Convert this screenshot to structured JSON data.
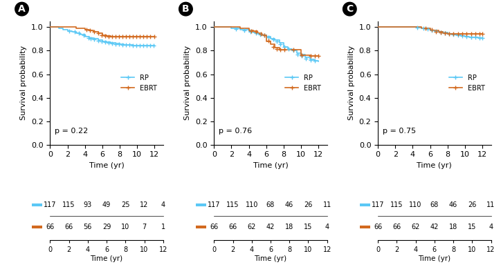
{
  "chart_data": [
    {
      "type": "step",
      "panel_label": "A",
      "annotation": "p = 0.22",
      "xlabel": "Time (yr)",
      "ylabel": "Survival probability",
      "xlim": [
        0,
        13
      ],
      "ylim": [
        0.0,
        1.05
      ],
      "xticks": [
        0,
        2,
        4,
        6,
        8,
        10,
        12
      ],
      "yticks": [
        0.0,
        0.2,
        0.4,
        0.6,
        0.8,
        1.0
      ],
      "grid": false,
      "legend": "center right",
      "series": [
        {
          "name": "RP",
          "color": "#5BC8F5",
          "marker": "plus",
          "x": [
            0,
            0.5,
            1,
            1.5,
            2,
            2.5,
            3,
            3.5,
            4,
            4.5,
            5,
            5.5,
            6,
            6.5,
            7,
            7.5,
            8,
            8.5,
            9,
            9.5,
            10,
            10.5,
            11,
            11.5,
            12
          ],
          "values": [
            1.0,
            1.0,
            0.99,
            0.98,
            0.97,
            0.96,
            0.95,
            0.94,
            0.92,
            0.91,
            0.9,
            0.89,
            0.88,
            0.875,
            0.87,
            0.86,
            0.855,
            0.85,
            0.848,
            0.845,
            0.845,
            0.845,
            0.845,
            0.845,
            0.845
          ],
          "censor_x": [
            2.2,
            2.8,
            3.3,
            3.9,
            4.4,
            4.7,
            5.1,
            5.5,
            5.9,
            6.3,
            6.7,
            7.1,
            7.5,
            7.9,
            8.3,
            8.7,
            9.1,
            9.5,
            9.9,
            10.3,
            10.7,
            11.1,
            11.5,
            11.9
          ],
          "censor_values": [
            0.97,
            0.96,
            0.95,
            0.93,
            0.91,
            0.9,
            0.895,
            0.885,
            0.877,
            0.872,
            0.868,
            0.86,
            0.857,
            0.854,
            0.851,
            0.848,
            0.847,
            0.846,
            0.845,
            0.845,
            0.845,
            0.845,
            0.845,
            0.845
          ],
          "at_risk": [
            117,
            115,
            93,
            49,
            25,
            12,
            4
          ]
        },
        {
          "name": "EBRT",
          "color": "#D2691E",
          "marker": "plus",
          "x": [
            0,
            1,
            2,
            3,
            4,
            4.5,
            5,
            5.5,
            6,
            6.5,
            7,
            8,
            9,
            10,
            11,
            12
          ],
          "values": [
            1.0,
            1.0,
            1.0,
            0.99,
            0.98,
            0.975,
            0.96,
            0.95,
            0.935,
            0.925,
            0.92,
            0.92,
            0.92,
            0.92,
            0.92,
            0.92
          ],
          "censor_x": [
            4.2,
            4.6,
            5.1,
            5.5,
            5.9,
            6.3,
            6.7,
            7.1,
            7.5,
            7.9,
            8.3,
            8.7,
            9.1,
            9.5,
            9.9,
            10.3,
            10.7,
            11.1,
            11.5,
            12.0
          ],
          "censor_values": [
            0.98,
            0.975,
            0.96,
            0.95,
            0.935,
            0.925,
            0.922,
            0.921,
            0.92,
            0.92,
            0.92,
            0.92,
            0.92,
            0.92,
            0.92,
            0.92,
            0.92,
            0.92,
            0.92,
            0.92
          ],
          "at_risk": [
            66,
            66,
            56,
            29,
            10,
            7,
            1
          ]
        }
      ],
      "at_risk_x": [
        0,
        2,
        4,
        6,
        8,
        10,
        12
      ],
      "at_risk_xlim": [
        0,
        12
      ],
      "at_risk_xticks": [
        0,
        2,
        4,
        6,
        8,
        10,
        12
      ],
      "at_risk_xlabel": "Time (yr)"
    },
    {
      "type": "step",
      "panel_label": "B",
      "annotation": "p = 0.76",
      "xlabel": "Time (yr)",
      "ylabel": "Survival probability",
      "xlim": [
        0,
        13
      ],
      "ylim": [
        0.0,
        1.05
      ],
      "xticks": [
        0,
        2,
        4,
        6,
        8,
        10,
        12
      ],
      "yticks": [
        0.0,
        0.2,
        0.4,
        0.6,
        0.8,
        1.0
      ],
      "grid": false,
      "legend": "center right",
      "series": [
        {
          "name": "RP",
          "color": "#5BC8F5",
          "marker": "plus",
          "x": [
            0,
            1,
            2,
            3,
            4,
            4.5,
            5,
            5.5,
            6,
            6.5,
            7,
            7.5,
            8,
            8.5,
            9,
            9.5,
            10,
            10.5,
            11,
            11.5,
            12
          ],
          "values": [
            1.0,
            1.0,
            0.99,
            0.98,
            0.96,
            0.955,
            0.945,
            0.935,
            0.92,
            0.905,
            0.89,
            0.87,
            0.83,
            0.815,
            0.8,
            0.78,
            0.765,
            0.745,
            0.725,
            0.715,
            0.71
          ],
          "censor_x": [
            2.5,
            3.5,
            4.2,
            4.8,
            5.3,
            5.8,
            6.3,
            6.8,
            7.2,
            7.6,
            8.1,
            8.6,
            9.1,
            9.6,
            10.1,
            10.6,
            11.1,
            11.6
          ],
          "censor_values": [
            0.985,
            0.975,
            0.96,
            0.95,
            0.94,
            0.93,
            0.915,
            0.898,
            0.88,
            0.855,
            0.83,
            0.815,
            0.8,
            0.77,
            0.755,
            0.735,
            0.72,
            0.714
          ],
          "at_risk": [
            117,
            115,
            110,
            68,
            46,
            26,
            11
          ]
        },
        {
          "name": "EBRT",
          "color": "#D2691E",
          "marker": "plus",
          "x": [
            0,
            1,
            2,
            3,
            4,
            4.5,
            5,
            5.5,
            6,
            6.5,
            7,
            7.5,
            8,
            9,
            10,
            11,
            12
          ],
          "values": [
            1.0,
            1.0,
            1.0,
            0.99,
            0.975,
            0.965,
            0.95,
            0.93,
            0.88,
            0.855,
            0.825,
            0.81,
            0.81,
            0.81,
            0.76,
            0.755,
            0.755
          ],
          "censor_x": [
            4.3,
            4.8,
            5.4,
            5.8,
            6.3,
            6.8,
            7.2,
            7.6,
            8.1,
            9.1,
            10.1,
            11.1,
            11.6,
            12.0
          ],
          "censor_values": [
            0.97,
            0.96,
            0.945,
            0.935,
            0.885,
            0.835,
            0.813,
            0.811,
            0.811,
            0.81,
            0.762,
            0.758,
            0.755,
            0.755
          ],
          "at_risk": [
            66,
            66,
            62,
            42,
            18,
            15,
            4
          ]
        }
      ],
      "at_risk_x": [
        0,
        2,
        4,
        6,
        8,
        10,
        12
      ],
      "at_risk_xlim": [
        0,
        12
      ],
      "at_risk_xticks": [
        0,
        2,
        4,
        6,
        8,
        10,
        12
      ],
      "at_risk_xlabel": "Time (yr)"
    },
    {
      "type": "step",
      "panel_label": "C",
      "annotation": "p = 0.75",
      "xlabel": "Time (yr)",
      "ylabel": "Survival probability",
      "xlim": [
        0,
        13
      ],
      "ylim": [
        0.0,
        1.05
      ],
      "xticks": [
        0,
        2,
        4,
        6,
        8,
        10,
        12
      ],
      "yticks": [
        0.0,
        0.2,
        0.4,
        0.6,
        0.8,
        1.0
      ],
      "grid": false,
      "legend": "center right",
      "series": [
        {
          "name": "RP",
          "color": "#5BC8F5",
          "marker": "plus",
          "x": [
            0,
            1,
            2,
            3,
            4,
            4.5,
            5,
            5.5,
            6,
            6.5,
            7,
            7.5,
            8,
            8.5,
            9,
            9.5,
            10,
            10.5,
            11,
            11.5,
            12
          ],
          "values": [
            1.0,
            1.0,
            1.0,
            1.0,
            1.0,
            0.995,
            0.99,
            0.985,
            0.975,
            0.968,
            0.96,
            0.955,
            0.945,
            0.938,
            0.932,
            0.926,
            0.92,
            0.916,
            0.913,
            0.91,
            0.91
          ],
          "censor_x": [
            4.5,
            5.2,
            5.7,
            6.2,
            6.7,
            7.2,
            7.7,
            8.2,
            8.7,
            9.2,
            9.7,
            10.2,
            10.7,
            11.2,
            11.7,
            12.0
          ],
          "censor_values": [
            0.995,
            0.99,
            0.985,
            0.975,
            0.965,
            0.958,
            0.952,
            0.944,
            0.938,
            0.931,
            0.925,
            0.92,
            0.916,
            0.912,
            0.91,
            0.91
          ],
          "at_risk": [
            117,
            115,
            110,
            68,
            46,
            26,
            11
          ]
        },
        {
          "name": "EBRT",
          "color": "#D2691E",
          "marker": "plus",
          "x": [
            0,
            1,
            2,
            3,
            4,
            5,
            6,
            7,
            7.5,
            8,
            9,
            10,
            11,
            12
          ],
          "values": [
            1.0,
            1.0,
            1.0,
            1.0,
            1.0,
            0.99,
            0.975,
            0.96,
            0.95,
            0.945,
            0.942,
            0.942,
            0.942,
            0.942
          ],
          "censor_x": [
            5.5,
            6.2,
            6.7,
            7.2,
            7.7,
            8.2,
            8.7,
            9.2,
            9.7,
            10.2,
            10.7,
            11.2,
            11.7,
            12.0
          ],
          "censor_values": [
            0.99,
            0.977,
            0.964,
            0.953,
            0.947,
            0.944,
            0.943,
            0.942,
            0.942,
            0.942,
            0.942,
            0.942,
            0.942,
            0.942
          ],
          "at_risk": [
            66,
            66,
            62,
            42,
            18,
            15,
            4
          ]
        }
      ],
      "at_risk_x": [
        0,
        2,
        4,
        6,
        8,
        10,
        12
      ],
      "at_risk_xlim": [
        0,
        12
      ],
      "at_risk_xticks": [
        0,
        2,
        4,
        6,
        8,
        10,
        12
      ],
      "at_risk_xlabel": "Time (yr)"
    }
  ]
}
